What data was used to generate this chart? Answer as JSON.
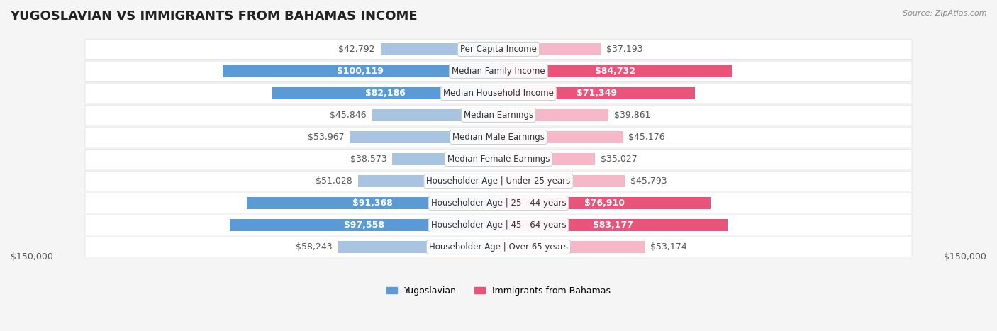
{
  "title": "YUGOSLAVIAN VS IMMIGRANTS FROM BAHAMAS INCOME",
  "source": "Source: ZipAtlas.com",
  "categories": [
    "Per Capita Income",
    "Median Family Income",
    "Median Household Income",
    "Median Earnings",
    "Median Male Earnings",
    "Median Female Earnings",
    "Householder Age | Under 25 years",
    "Householder Age | 25 - 44 years",
    "Householder Age | 45 - 64 years",
    "Householder Age | Over 65 years"
  ],
  "yugoslav_values": [
    42792,
    100119,
    82186,
    45846,
    53967,
    38573,
    51028,
    91368,
    97558,
    58243
  ],
  "bahamas_values": [
    37193,
    84732,
    71349,
    39861,
    45176,
    35027,
    45793,
    76910,
    83177,
    53174
  ],
  "yugoslav_labels": [
    "$42,792",
    "$100,119",
    "$82,186",
    "$45,846",
    "$53,967",
    "$38,573",
    "$51,028",
    "$91,368",
    "$97,558",
    "$58,243"
  ],
  "bahamas_labels": [
    "$37,193",
    "$84,732",
    "$71,349",
    "$39,861",
    "$45,176",
    "$35,027",
    "$45,793",
    "$76,910",
    "$83,177",
    "$53,174"
  ],
  "yugoslav_color_light": "#a8c4e0",
  "yugoslav_color_dark": "#5b9bd5",
  "bahamas_color_light": "#f4b8c8",
  "bahamas_color_dark": "#e8547a",
  "max_value": 150000,
  "xlabel_left": "$150,000",
  "xlabel_right": "$150,000",
  "legend_yugoslav": "Yugoslavian",
  "legend_bahamas": "Immigrants from Bahamas",
  "background_color": "#f5f5f5",
  "row_background": "#ffffff",
  "bar_height": 0.55,
  "label_fontsize": 9,
  "title_fontsize": 13,
  "category_fontsize": 8.5
}
